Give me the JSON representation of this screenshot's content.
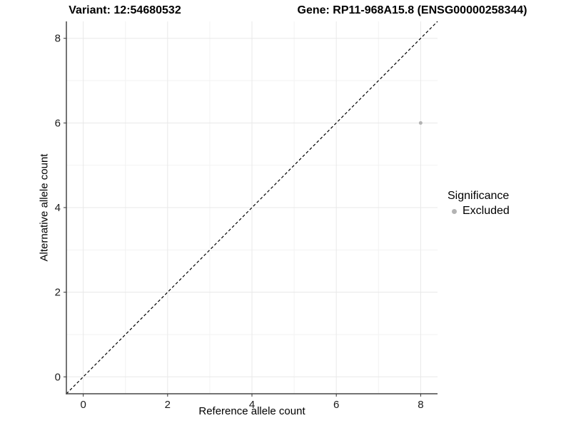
{
  "chart_data": {
    "type": "scatter",
    "title_left": "Variant: 12:54680532",
    "title_right": "Gene: RP11-968A15.8 (ENSG00000258344)",
    "xlabel": "Reference allele count",
    "ylabel": "Alternative allele count",
    "xlim": [
      -0.4,
      8.4
    ],
    "ylim": [
      -0.4,
      8.4
    ],
    "xticks": [
      0,
      2,
      4,
      6,
      8
    ],
    "yticks": [
      0,
      2,
      4,
      6,
      8
    ],
    "grid": {
      "major": true,
      "minor": true
    },
    "legend_position": "right",
    "series": [
      {
        "name": "Excluded",
        "color": "#b3b3b3",
        "marker": "circle",
        "marker_radius": 2.5,
        "points": [
          [
            8,
            6
          ]
        ]
      }
    ],
    "reference_line": {
      "kind": "identity y=x",
      "style": "dashed",
      "color": "#000000"
    }
  },
  "legend": {
    "title": "Significance",
    "items": [
      {
        "label": "Excluded",
        "color": "#b3b3b3"
      }
    ]
  },
  "colors": {
    "background": "#ffffff",
    "grid_major": "#e8e8e8",
    "grid_minor": "#f2f2f2",
    "axis_line": "#474747",
    "tick_mark": "#333333",
    "tick_label": "#1a1a1a",
    "title": "#000000"
  }
}
